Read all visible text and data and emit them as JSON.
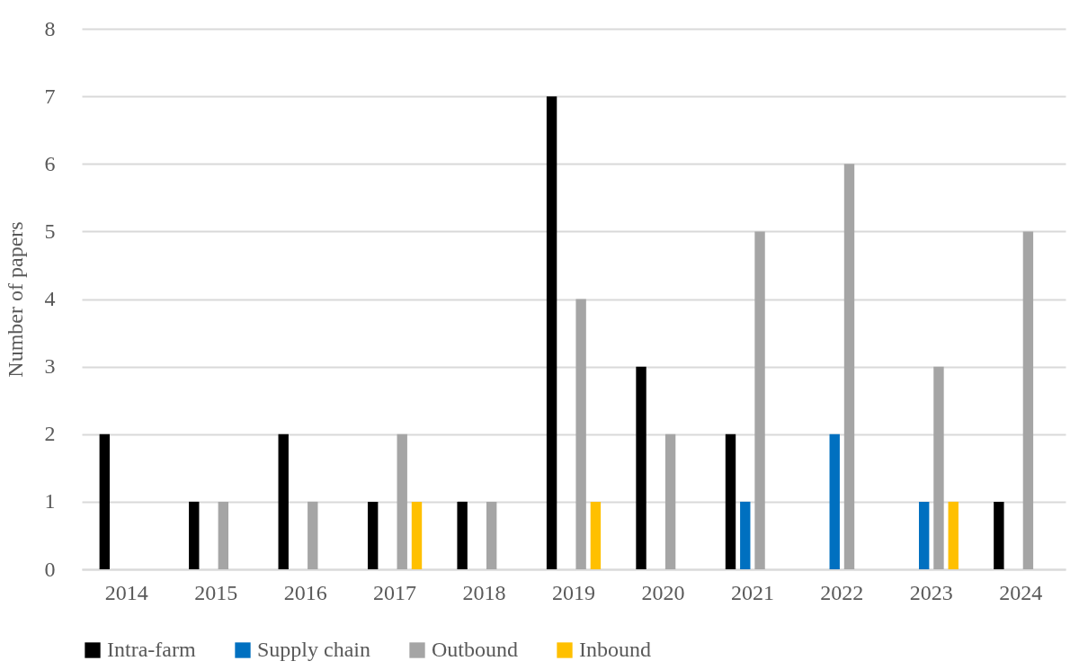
{
  "chart_data": {
    "type": "bar",
    "ylabel": "Number of papers",
    "categories": [
      "2014",
      "2015",
      "2016",
      "2017",
      "2018",
      "2019",
      "2020",
      "2021",
      "2022",
      "2023",
      "2024"
    ],
    "series": [
      {
        "name": "Intra-farm",
        "color": "#000000",
        "values": [
          2,
          1,
          2,
          1,
          1,
          7,
          3,
          2,
          0,
          0,
          1
        ]
      },
      {
        "name": "Supply chain",
        "color": "#0070c0",
        "values": [
          0,
          0,
          0,
          0,
          0,
          0,
          0,
          1,
          2,
          1,
          0
        ]
      },
      {
        "name": "Outbound",
        "color": "#a5a5a5",
        "values": [
          0,
          1,
          1,
          2,
          1,
          4,
          2,
          5,
          6,
          3,
          5
        ]
      },
      {
        "name": "Inbound",
        "color": "#ffc000",
        "values": [
          0,
          0,
          0,
          1,
          0,
          1,
          0,
          0,
          0,
          1,
          0
        ]
      }
    ],
    "ylim": [
      0,
      8
    ],
    "yticks": [
      0,
      1,
      2,
      3,
      4,
      5,
      6,
      7,
      8
    ],
    "grid": "y",
    "legend": "bottom"
  }
}
